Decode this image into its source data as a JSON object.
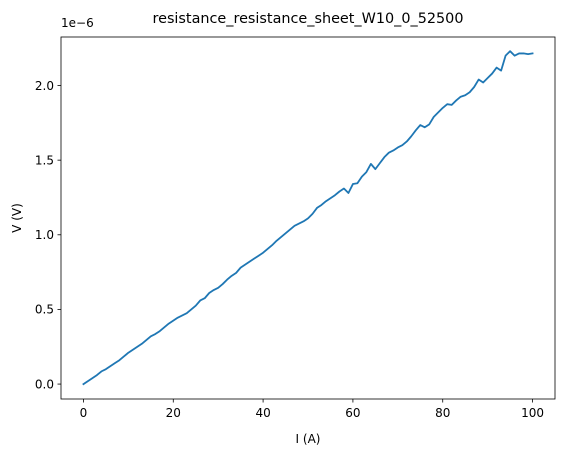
{
  "chart_data": {
    "type": "line",
    "title": "resistance_resistance_sheet_W10_0_52500",
    "xlabel": "I (A)",
    "ylabel": "V (V)",
    "offset_text": "1e−6",
    "y_scale": 1e-06,
    "xlim": [
      -5,
      105
    ],
    "ylim": [
      -0.1,
      2.325
    ],
    "x_ticks": [
      0,
      20,
      40,
      60,
      80,
      100
    ],
    "x_tick_labels": [
      "0",
      "20",
      "40",
      "60",
      "80",
      "100"
    ],
    "y_ticks": [
      0.0,
      0.5,
      1.0,
      1.5,
      2.0
    ],
    "y_tick_labels": [
      "0.0",
      "0.5",
      "1.0",
      "1.5",
      "2.0"
    ],
    "grid": false,
    "series": [
      {
        "color": "#1f77b4",
        "x": [
          0,
          1,
          2,
          3,
          4,
          5,
          6,
          7,
          8,
          9,
          10,
          11,
          12,
          13,
          14,
          15,
          16,
          17,
          18,
          19,
          20,
          21,
          22,
          23,
          24,
          25,
          26,
          27,
          28,
          29,
          30,
          31,
          32,
          33,
          34,
          35,
          36,
          37,
          38,
          39,
          40,
          41,
          42,
          43,
          44,
          45,
          46,
          47,
          48,
          49,
          50,
          51,
          52,
          53,
          54,
          55,
          56,
          57,
          58,
          59,
          60,
          61,
          62,
          63,
          64,
          65,
          66,
          67,
          68,
          69,
          70,
          71,
          72,
          73,
          74,
          75,
          76,
          77,
          78,
          79,
          80,
          81,
          82,
          83,
          84,
          85,
          86,
          87,
          88,
          89,
          90,
          91,
          92,
          93,
          94,
          95,
          96,
          97,
          98,
          99,
          100
        ],
        "y": [
          0.0,
          0.02,
          0.04,
          0.06,
          0.085,
          0.1,
          0.12,
          0.14,
          0.16,
          0.185,
          0.21,
          0.23,
          0.25,
          0.27,
          0.295,
          0.32,
          0.335,
          0.355,
          0.38,
          0.405,
          0.425,
          0.445,
          0.46,
          0.475,
          0.5,
          0.525,
          0.56,
          0.575,
          0.61,
          0.63,
          0.645,
          0.67,
          0.7,
          0.725,
          0.745,
          0.78,
          0.8,
          0.82,
          0.84,
          0.86,
          0.88,
          0.905,
          0.93,
          0.96,
          0.985,
          1.01,
          1.035,
          1.06,
          1.075,
          1.09,
          1.11,
          1.14,
          1.18,
          1.2,
          1.225,
          1.245,
          1.265,
          1.29,
          1.31,
          1.28,
          1.34,
          1.345,
          1.39,
          1.42,
          1.475,
          1.44,
          1.48,
          1.52,
          1.55,
          1.565,
          1.585,
          1.6,
          1.625,
          1.66,
          1.7,
          1.735,
          1.72,
          1.74,
          1.79,
          1.82,
          1.85,
          1.875,
          1.87,
          1.9,
          1.925,
          1.935,
          1.955,
          1.99,
          2.04,
          2.02,
          2.05,
          2.08,
          2.12,
          2.1,
          2.2,
          2.23,
          2.2,
          2.215,
          2.215,
          2.21,
          2.215
        ]
      }
    ]
  }
}
